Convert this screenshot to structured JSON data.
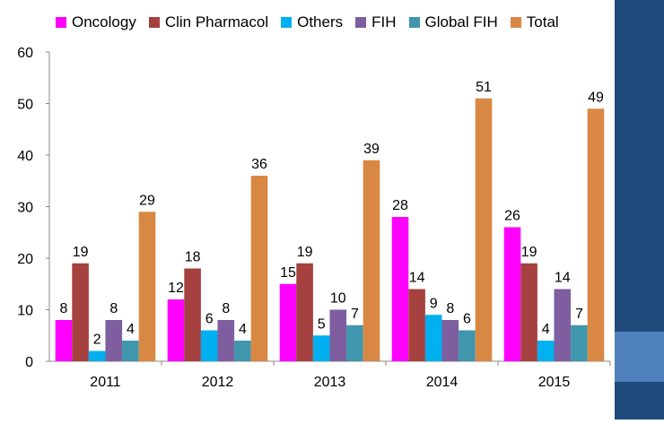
{
  "chart_data": {
    "type": "bar",
    "categories": [
      "2011",
      "2012",
      "2013",
      "2014",
      "2015"
    ],
    "series": [
      {
        "name": "Oncology",
        "color": "#ff00ff",
        "values": [
          8,
          12,
          15,
          28,
          26
        ]
      },
      {
        "name": "Clin Pharmacol",
        "color": "#a5413f",
        "values": [
          19,
          18,
          19,
          14,
          19
        ]
      },
      {
        "name": "Others",
        "color": "#00b0f0",
        "values": [
          2,
          6,
          5,
          9,
          4
        ]
      },
      {
        "name": "FIH",
        "color": "#7e5e9f",
        "values": [
          8,
          8,
          10,
          8,
          14
        ]
      },
      {
        "name": "Global FIH",
        "color": "#3f96ad",
        "values": [
          4,
          4,
          7,
          6,
          7
        ]
      },
      {
        "name": "Total",
        "color": "#d98844",
        "values": [
          29,
          36,
          39,
          51,
          49
        ]
      }
    ],
    "ylim": [
      0,
      60
    ],
    "yticks": [
      "0",
      "10",
      "20",
      "30",
      "40",
      "50",
      "60"
    ],
    "grid": false,
    "legend": "top"
  },
  "theme": {
    "panel_color": "#1f4a7c",
    "panel_accent": "#4f81bd"
  }
}
